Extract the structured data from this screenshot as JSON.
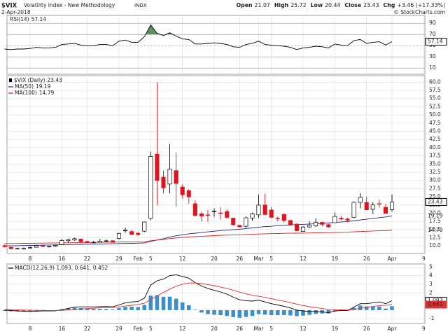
{
  "header": {
    "symbol": "$VIX",
    "name": "Volatility Index - New Methodology",
    "exchange": "INDX",
    "date": "2-Apr-2018",
    "copyright": "© StockCharts.com",
    "quote": [
      {
        "label": "Open",
        "value": 21.07
      },
      {
        "label": "High",
        "value": 25.72
      },
      {
        "label": "Low",
        "value": 20.44
      },
      {
        "label": "Close",
        "value": 23.43
      },
      {
        "label": "Chg",
        "value": "+3.46 (+17.33%)"
      }
    ]
  },
  "chart_data": [
    {
      "type": "line",
      "ylim": [
        -1,
        104
      ],
      "yticks": [
        90,
        70,
        50,
        30,
        10
      ],
      "grid": true,
      "fill_above": 70,
      "fill_color": "#5f8f5f",
      "series": [
        {
          "name": "RSI(14)",
          "color": "#000000",
          "values": [
            44,
            43,
            44,
            44,
            45,
            47,
            46,
            46,
            47,
            52,
            53,
            54,
            51,
            50,
            50,
            52,
            52,
            50,
            58,
            60,
            56,
            56,
            66,
            87,
            72,
            68,
            73,
            67,
            62,
            61,
            53,
            53,
            54,
            55,
            54,
            52,
            48,
            47,
            52,
            54,
            58,
            52,
            51,
            50,
            49,
            47,
            43,
            46,
            47,
            49,
            48,
            46,
            53,
            51,
            50,
            59,
            61,
            54,
            56,
            57,
            51,
            57.14,
            null,
            null,
            null,
            null,
            null
          ]
        }
      ]
    },
    {
      "type": "candlestick",
      "title": "$VIX (Daily)",
      "ylim": [
        7.7,
        62
      ],
      "grid": true,
      "up_color": "#ffffff",
      "down_color": "#e0141e",
      "yticks": [
        {
          "value": 10,
          "label": "10.0"
        },
        12.5,
        {
          "value": 15,
          "label": "15.0"
        },
        17.5,
        {
          "value": 20,
          "label": "20.0"
        },
        22.5,
        {
          "value": 25,
          "label": "25.0"
        },
        27.5,
        {
          "value": 30,
          "label": "30.0"
        },
        32.5,
        {
          "value": 35,
          "label": "35.0"
        },
        37.5,
        {
          "value": 40,
          "label": "40.0"
        },
        42.5,
        {
          "value": 45,
          "label": "45.0"
        },
        47.5,
        {
          "value": 50,
          "label": "50.0"
        },
        52.5,
        {
          "value": 55,
          "label": "55.0"
        },
        57.5,
        {
          "value": 60,
          "label": "60.0"
        }
      ],
      "categories": [
        null,
        null,
        null,
        null,
        "8",
        null,
        null,
        null,
        null,
        "16",
        null,
        null,
        null,
        "22",
        null,
        null,
        null,
        null,
        "29",
        null,
        null,
        "Feb",
        null,
        "5",
        null,
        null,
        null,
        null,
        "12",
        null,
        null,
        null,
        null,
        "20",
        null,
        null,
        null,
        "26",
        null,
        null,
        "Mar",
        null,
        "5",
        null,
        null,
        null,
        null,
        "12",
        null,
        null,
        null,
        null,
        "19",
        null,
        null,
        null,
        null,
        "26",
        null,
        null,
        null,
        "Apr",
        null,
        null,
        null,
        null,
        "9"
      ],
      "open": [
        10.1,
        9.6,
        9.1,
        9.2,
        9.4,
        9.6,
        10.1,
        9.8,
        9.9,
        10.4,
        11.6,
        11.8,
        12.1,
        11.4,
        11.0,
        11.1,
        11.5,
        11.6,
        12.3,
        14.6,
        14.4,
        13.9,
        14.5,
        18.4,
        38.0,
        31.0,
        28.9,
        33.0,
        28.0,
        26.9,
        22.9,
        19.8,
        19.5,
        20.4,
        20.1,
        20.5,
        18.5,
        16.3,
        16.0,
        18.5,
        19.5,
        22.5,
        21.0,
        18.5,
        19.6,
        17.8,
        16.7,
        14.4,
        15.8,
        16.1,
        17.2,
        16.5,
        17.1,
        18.5,
        18.2,
        18.7,
        23.3,
        23.3,
        21.2,
        22.9,
        21.8,
        21.07,
        null,
        null,
        null,
        null,
        null
      ],
      "high": [
        10.4,
        9.8,
        9.5,
        9.5,
        9.8,
        10.3,
        10.3,
        10.0,
        10.2,
        12.2,
        12.2,
        12.5,
        12.3,
        11.6,
        11.6,
        12.2,
        12.0,
        11.7,
        14.0,
        15.6,
        14.9,
        14.2,
        17.4,
        38.8,
        60.0,
        33.0,
        41.1,
        38.5,
        28.8,
        27.3,
        23.9,
        20.4,
        21.0,
        21.5,
        21.8,
        21.2,
        18.6,
        16.5,
        19.0,
        20.2,
        25.7,
        26.0,
        21.9,
        19.0,
        20.0,
        18.0,
        16.8,
        16.0,
        17.5,
        18.4,
        17.4,
        16.8,
        20.2,
        19.2,
        18.6,
        23.6,
        26.1,
        25.0,
        23.4,
        24.2,
        22.9,
        25.72,
        null,
        null,
        null,
        null,
        null
      ],
      "low": [
        9.5,
        9.0,
        8.9,
        9.0,
        9.3,
        9.5,
        9.7,
        9.5,
        9.7,
        10.3,
        11.0,
        11.6,
        11.1,
        10.9,
        10.9,
        11.0,
        11.2,
        11.0,
        12.0,
        14.0,
        13.4,
        13.0,
        14.2,
        17.9,
        22.4,
        26.0,
        26.0,
        22.0,
        24.5,
        22.9,
        19.2,
        17.5,
        17.4,
        18.9,
        18.0,
        18.3,
        16.2,
        15.7,
        15.6,
        17.7,
        18.5,
        19.5,
        18.5,
        17.5,
        17.1,
        16.4,
        14.5,
        14.3,
        15.5,
        15.8,
        16.0,
        15.6,
        17.0,
        17.8,
        17.2,
        18.5,
        21.5,
        20.9,
        19.8,
        21.7,
        19.8,
        20.44,
        null,
        null,
        null,
        null,
        null
      ],
      "close": [
        9.77,
        9.15,
        9.22,
        9.22,
        9.52,
        10.08,
        9.82,
        9.88,
        10.16,
        11.66,
        11.91,
        12.22,
        11.27,
        11.03,
        11.1,
        11.47,
        11.58,
        11.08,
        13.84,
        14.79,
        13.54,
        13.47,
        17.31,
        37.32,
        29.98,
        27.73,
        33.46,
        29.06,
        25.61,
        24.97,
        19.26,
        19.13,
        19.46,
        20.6,
        20.02,
        18.72,
        16.49,
        15.8,
        18.59,
        19.85,
        22.47,
        19.59,
        18.73,
        18.36,
        17.76,
        16.54,
        14.64,
        15.78,
        16.35,
        17.23,
        16.59,
        15.8,
        19.02,
        18.2,
        17.86,
        23.34,
        24.87,
        21.03,
        22.5,
        22.87,
        19.97,
        23.43,
        null,
        null,
        null,
        null,
        null
      ],
      "series": [
        {
          "name": "MA(50)",
          "color": "#23237f",
          "values": [
            10.0,
            10.04,
            10.08,
            10.12,
            10.16,
            10.2,
            10.24,
            10.28,
            10.32,
            10.36,
            10.4,
            10.44,
            10.48,
            10.52,
            10.56,
            10.6,
            10.64,
            10.68,
            10.72,
            10.76,
            10.8,
            10.84,
            10.9,
            11.4,
            11.8,
            12.2,
            12.7,
            13.1,
            13.4,
            13.7,
            13.9,
            14.1,
            14.3,
            14.5,
            14.7,
            14.85,
            15.0,
            15.1,
            15.3,
            15.5,
            15.7,
            15.9,
            16.0,
            16.2,
            16.3,
            16.4,
            16.5,
            16.6,
            16.7,
            16.8,
            16.9,
            17.0,
            17.2,
            17.3,
            17.45,
            17.7,
            17.95,
            18.15,
            18.4,
            18.65,
            18.85,
            19.19,
            null,
            null,
            null,
            null,
            null
          ]
        },
        {
          "name": "MA(100)",
          "color": "#d42020",
          "values": [
            10.7,
            10.73,
            10.76,
            10.79,
            10.81,
            10.84,
            10.87,
            10.89,
            10.92,
            10.95,
            10.98,
            11.0,
            11.03,
            11.06,
            11.08,
            11.11,
            11.14,
            11.16,
            11.19,
            11.22,
            11.25,
            11.27,
            11.3,
            11.6,
            11.8,
            12.0,
            12.25,
            12.45,
            12.6,
            12.75,
            12.85,
            12.95,
            13.05,
            13.15,
            13.25,
            13.3,
            13.35,
            13.4,
            13.5,
            13.55,
            13.65,
            13.7,
            13.75,
            13.8,
            13.85,
            13.88,
            13.9,
            13.93,
            13.96,
            14.0,
            14.02,
            14.05,
            14.1,
            14.15,
            14.2,
            14.3,
            14.4,
            14.48,
            14.56,
            14.63,
            14.68,
            14.79,
            null,
            null,
            null,
            null,
            null
          ]
        }
      ]
    },
    {
      "type": "macd",
      "legend": "MACD(12,26,9) 1.093, 0.641, 0.452",
      "ylim": [
        -1.55,
        5.35
      ],
      "yticks": [
        5,
        4,
        3,
        2,
        -1
      ],
      "grid": true,
      "categories": [
        null,
        null,
        null,
        null,
        "8",
        null,
        null,
        null,
        null,
        "16",
        null,
        null,
        null,
        "22",
        null,
        null,
        null,
        null,
        "29",
        null,
        null,
        "Feb",
        null,
        "5",
        null,
        null,
        null,
        null,
        "12",
        null,
        null,
        null,
        null,
        "20",
        null,
        null,
        null,
        "26",
        null,
        null,
        "Mar",
        null,
        "5",
        null,
        null,
        null,
        null,
        "12",
        null,
        null,
        null,
        null,
        "19",
        null,
        null,
        null,
        null,
        "26",
        null,
        null,
        null,
        "Apr",
        null,
        null,
        null,
        null,
        "9"
      ],
      "series": [
        {
          "kind": "line",
          "color": "#000000",
          "values": [
            0.0,
            -0.05,
            -0.1,
            -0.13,
            -0.15,
            -0.12,
            -0.1,
            -0.1,
            -0.08,
            0.05,
            0.2,
            0.35,
            0.38,
            0.38,
            0.37,
            0.4,
            0.42,
            0.38,
            0.6,
            0.85,
            0.95,
            1.0,
            1.4,
            2.9,
            3.4,
            3.6,
            4.0,
            4.1,
            3.9,
            3.7,
            3.2,
            2.8,
            2.5,
            2.3,
            2.1,
            1.85,
            1.5,
            1.2,
            1.1,
            1.05,
            1.15,
            0.95,
            0.75,
            0.6,
            0.45,
            0.25,
            0.0,
            -0.1,
            -0.15,
            -0.15,
            -0.2,
            -0.3,
            -0.1,
            -0.05,
            -0.05,
            0.35,
            0.75,
            0.75,
            0.85,
            0.95,
            0.75,
            1.093,
            null,
            null,
            null,
            null,
            null
          ]
        },
        {
          "kind": "line",
          "color": "#e03030",
          "values": [
            0.1,
            0.08,
            0.05,
            0.02,
            0.0,
            -0.02,
            -0.03,
            -0.04,
            -0.05,
            -0.03,
            0.01,
            0.08,
            0.14,
            0.18,
            0.22,
            0.26,
            0.29,
            0.31,
            0.37,
            0.47,
            0.56,
            0.65,
            0.8,
            1.22,
            1.66,
            2.05,
            2.44,
            2.77,
            3.0,
            3.14,
            3.15,
            3.08,
            2.96,
            2.83,
            2.68,
            2.52,
            2.31,
            2.09,
            1.89,
            1.72,
            1.61,
            1.48,
            1.33,
            1.18,
            1.03,
            0.87,
            0.7,
            0.54,
            0.4,
            0.29,
            0.19,
            0.09,
            0.05,
            0.03,
            0.01,
            0.08,
            0.21,
            0.32,
            0.42,
            0.53,
            0.57,
            0.641,
            null,
            null,
            null,
            null,
            null
          ]
        },
        {
          "kind": "bar",
          "color": "#3d8fc9",
          "values": [
            -0.1,
            -0.13,
            -0.15,
            -0.15,
            -0.15,
            -0.1,
            -0.07,
            -0.06,
            -0.03,
            0.08,
            0.19,
            0.27,
            0.24,
            0.2,
            0.15,
            0.14,
            0.13,
            0.07,
            0.23,
            0.38,
            0.39,
            0.35,
            0.6,
            1.68,
            1.74,
            1.55,
            1.56,
            1.33,
            0.9,
            0.56,
            0.05,
            -0.28,
            -0.46,
            -0.53,
            -0.58,
            -0.67,
            -0.81,
            -0.89,
            -0.79,
            -0.67,
            -0.46,
            -0.53,
            -0.58,
            -0.58,
            -0.58,
            -0.62,
            -0.7,
            -0.64,
            -0.55,
            -0.44,
            -0.39,
            -0.39,
            -0.15,
            -0.08,
            -0.06,
            0.27,
            0.54,
            0.43,
            0.43,
            0.42,
            0.18,
            0.452,
            null,
            null,
            null,
            null,
            null
          ]
        }
      ]
    }
  ]
}
